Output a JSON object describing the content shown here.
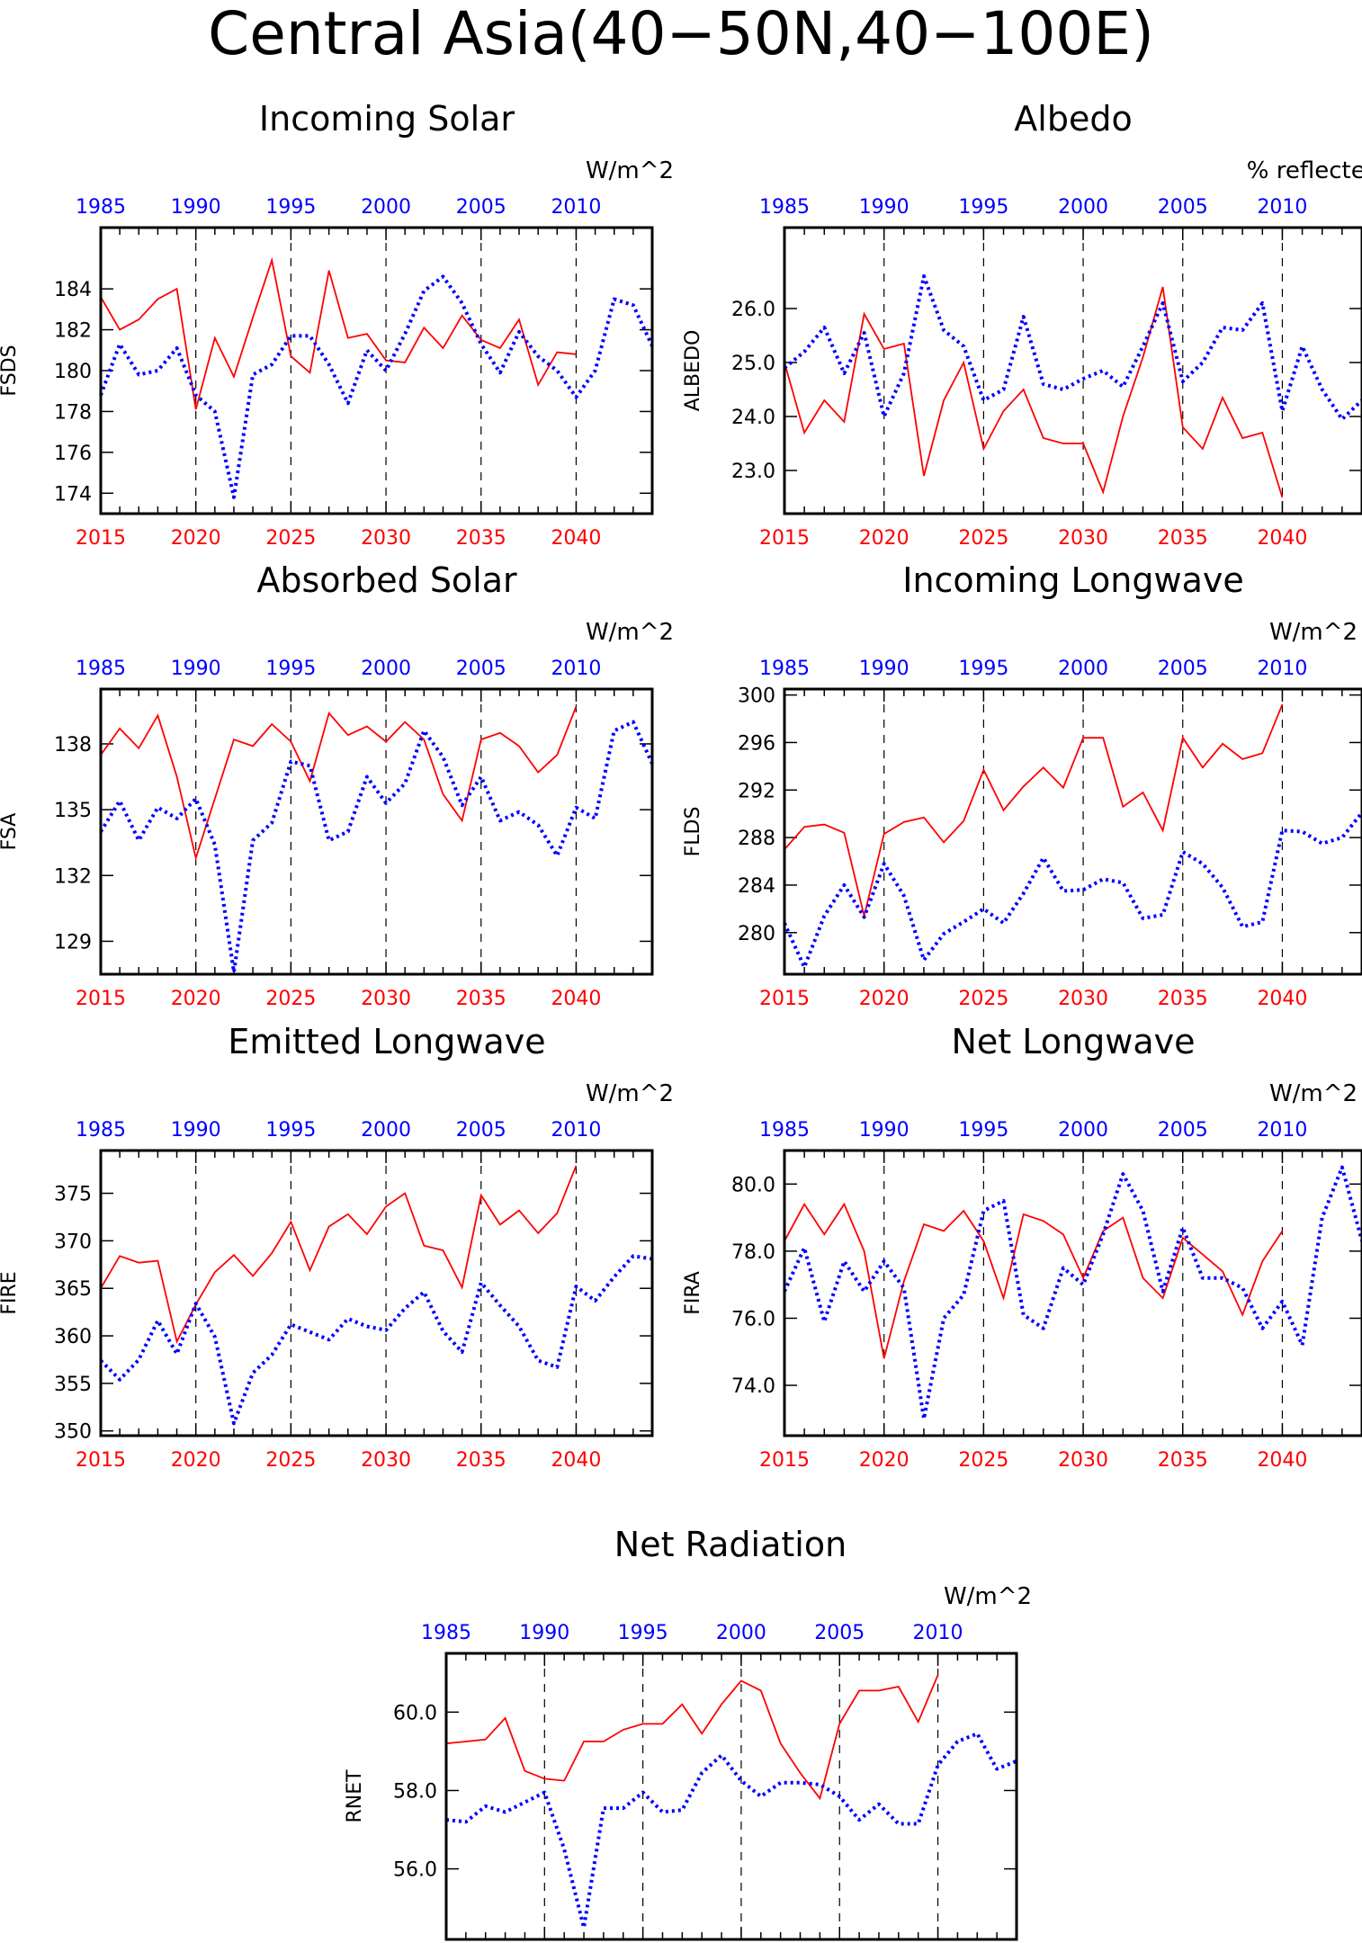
{
  "page": {
    "title": "Central Asia(40−50N,40−100E)"
  },
  "style": {
    "future_color": "#ff0000",
    "hist_color": "#0000ff",
    "grid_color": "#000000"
  },
  "chart_data": [
    {
      "id": "fsds",
      "type": "line",
      "title": "Incoming Solar",
      "units": "W/m^2",
      "ylabel": "FSDS",
      "ylim": [
        173,
        187
      ],
      "yticks": [
        174,
        176,
        178,
        180,
        182,
        184
      ],
      "ytick_labels": [
        "174",
        "176",
        "178",
        "180",
        "182",
        "184"
      ],
      "x_bottom": {
        "range": [
          2015,
          2044
        ],
        "ticks": [
          2015,
          2020,
          2025,
          2030,
          2035,
          2040
        ]
      },
      "x_top": {
        "range": [
          1985,
          2014
        ],
        "ticks": [
          1985,
          1990,
          1995,
          2000,
          2005,
          2010
        ]
      },
      "series": [
        {
          "x_start": 2015,
          "values": [
            183.6,
            182.0,
            182.5,
            183.5,
            184.0,
            178.1,
            181.6,
            179.7,
            182.6,
            185.4,
            180.7,
            179.9,
            184.9,
            181.6,
            181.8,
            180.5,
            180.4,
            182.1,
            181.1,
            182.7,
            181.5,
            181.1,
            182.5,
            179.3,
            180.9,
            180.8
          ]
        },
        {
          "x_start": 1985,
          "values": [
            178.8,
            181.3,
            179.8,
            180.0,
            181.1,
            178.8,
            178.0,
            173.8,
            179.8,
            180.3,
            181.7,
            181.7,
            180.3,
            178.4,
            181.0,
            180.0,
            181.8,
            183.9,
            184.6,
            183.3,
            181.3,
            179.9,
            181.9,
            180.7,
            180.0,
            178.7,
            180.0,
            183.5,
            183.2,
            181.2
          ]
        }
      ]
    },
    {
      "id": "albedo",
      "type": "line",
      "title": "Albedo",
      "units": "% reflected",
      "ylabel": "ALBEDO",
      "ylim": [
        22.2,
        27.5
      ],
      "yticks": [
        23,
        24,
        25,
        26
      ],
      "ytick_labels": [
        "23.0",
        "24.0",
        "25.0",
        "26.0"
      ],
      "x_bottom": {
        "range": [
          2015,
          2044
        ],
        "ticks": [
          2015,
          2020,
          2025,
          2030,
          2035,
          2040
        ]
      },
      "x_top": {
        "range": [
          1985,
          2014
        ],
        "ticks": [
          1985,
          1990,
          1995,
          2000,
          2005,
          2010
        ]
      },
      "series": [
        {
          "x_start": 2015,
          "values": [
            25.0,
            23.7,
            24.3,
            23.9,
            25.9,
            25.25,
            25.35,
            22.9,
            24.3,
            25.0,
            23.4,
            24.1,
            24.5,
            23.6,
            23.5,
            23.5,
            22.6,
            24.0,
            25.1,
            26.4,
            23.8,
            23.4,
            24.35,
            23.6,
            23.7,
            22.5
          ]
        },
        {
          "x_start": 1985,
          "values": [
            24.9,
            25.2,
            25.65,
            24.8,
            25.55,
            24.0,
            24.8,
            26.6,
            25.6,
            25.3,
            24.3,
            24.5,
            25.85,
            24.6,
            24.5,
            24.7,
            24.85,
            24.55,
            25.3,
            26.1,
            24.65,
            25.0,
            25.65,
            25.6,
            26.1,
            24.1,
            25.3,
            24.5,
            23.95,
            24.3
          ]
        }
      ]
    },
    {
      "id": "fsa",
      "type": "line",
      "title": "Absorbed Solar",
      "units": "W/m^2",
      "ylabel": "FSA",
      "ylim": [
        127.5,
        140.5
      ],
      "yticks": [
        129,
        132,
        135,
        138
      ],
      "ytick_labels": [
        "129",
        "132",
        "135",
        "138"
      ],
      "x_bottom": {
        "range": [
          2015,
          2044
        ],
        "ticks": [
          2015,
          2020,
          2025,
          2030,
          2035,
          2040
        ]
      },
      "x_top": {
        "range": [
          1985,
          2014
        ],
        "ticks": [
          1985,
          1990,
          1995,
          2000,
          2005,
          2010
        ]
      },
      "series": [
        {
          "x_start": 2015,
          "values": [
            137.5,
            138.7,
            137.8,
            139.3,
            136.5,
            132.8,
            135.5,
            138.2,
            137.9,
            138.9,
            138.1,
            136.3,
            139.4,
            138.4,
            138.8,
            138.1,
            139.0,
            138.2,
            135.7,
            134.5,
            138.2,
            138.5,
            137.9,
            136.7,
            137.5,
            139.7
          ]
        },
        {
          "x_start": 1985,
          "values": [
            134.0,
            135.4,
            133.6,
            135.1,
            134.6,
            135.5,
            133.4,
            127.6,
            133.6,
            134.4,
            137.2,
            137.0,
            133.6,
            134.0,
            136.5,
            135.3,
            136.2,
            138.6,
            137.4,
            135.2,
            136.5,
            134.5,
            134.9,
            134.3,
            132.9,
            135.1,
            134.6,
            138.6,
            139.0,
            137.1
          ]
        }
      ]
    },
    {
      "id": "flds",
      "type": "line",
      "title": "Incoming Longwave",
      "units": "W/m^2",
      "ylabel": "FLDS",
      "ylim": [
        276.5,
        300.5
      ],
      "yticks": [
        280,
        284,
        288,
        292,
        296,
        300
      ],
      "ytick_labels": [
        "280",
        "284",
        "288",
        "292",
        "296",
        "300"
      ],
      "x_bottom": {
        "range": [
          2015,
          2044
        ],
        "ticks": [
          2015,
          2020,
          2025,
          2030,
          2035,
          2040
        ]
      },
      "x_top": {
        "range": [
          1985,
          2014
        ],
        "ticks": [
          1985,
          1990,
          1995,
          2000,
          2005,
          2010
        ]
      },
      "series": [
        {
          "x_start": 2015,
          "values": [
            287.0,
            288.9,
            289.1,
            288.4,
            281.4,
            288.3,
            289.3,
            289.7,
            287.6,
            289.4,
            293.7,
            290.3,
            292.3,
            293.9,
            292.2,
            296.4,
            296.4,
            290.6,
            291.8,
            288.6,
            296.4,
            293.9,
            295.9,
            294.6,
            295.1,
            299.2
          ]
        },
        {
          "x_start": 1985,
          "values": [
            280.8,
            277.1,
            281.4,
            284.0,
            281.3,
            285.8,
            283.1,
            277.7,
            279.9,
            280.9,
            282.0,
            280.8,
            283.3,
            286.3,
            283.5,
            283.6,
            284.5,
            284.2,
            281.2,
            281.5,
            286.8,
            285.8,
            283.8,
            280.5,
            280.9,
            288.6,
            288.5,
            287.5,
            288.0,
            290.1
          ]
        }
      ]
    },
    {
      "id": "fire",
      "type": "line",
      "title": "Emitted Longwave",
      "units": "W/m^2",
      "ylabel": "FIRE",
      "ylim": [
        349.5,
        379.5
      ],
      "yticks": [
        350,
        355,
        360,
        365,
        370,
        375
      ],
      "ytick_labels": [
        "350",
        "355",
        "360",
        "365",
        "370",
        "375"
      ],
      "x_bottom": {
        "range": [
          2015,
          2044
        ],
        "ticks": [
          2015,
          2020,
          2025,
          2030,
          2035,
          2040
        ]
      },
      "x_top": {
        "range": [
          1985,
          2014
        ],
        "ticks": [
          1985,
          1990,
          1995,
          2000,
          2005,
          2010
        ]
      },
      "series": [
        {
          "x_start": 2015,
          "values": [
            365.0,
            368.4,
            367.7,
            367.9,
            359.4,
            363.3,
            366.7,
            368.5,
            366.3,
            368.7,
            372.0,
            366.9,
            371.5,
            372.8,
            370.7,
            373.6,
            375.0,
            369.5,
            369.0,
            365.1,
            374.8,
            371.7,
            373.2,
            370.8,
            372.9,
            377.9
          ]
        },
        {
          "x_start": 1985,
          "values": [
            357.4,
            355.4,
            357.5,
            361.6,
            358.1,
            363.4,
            359.9,
            350.8,
            356.1,
            358.0,
            361.2,
            360.4,
            359.6,
            361.8,
            361.0,
            360.6,
            362.9,
            364.6,
            360.5,
            358.3,
            365.6,
            363.2,
            361.0,
            357.4,
            356.7,
            365.2,
            363.7,
            366.2,
            368.4,
            368.1
          ]
        }
      ]
    },
    {
      "id": "fira",
      "type": "line",
      "title": "Net Longwave",
      "units": "W/m^2",
      "ylabel": "FIRA",
      "ylim": [
        72.5,
        81.0
      ],
      "yticks": [
        74,
        76,
        78,
        80
      ],
      "ytick_labels": [
        "74.0",
        "76.0",
        "78.0",
        "80.0"
      ],
      "x_bottom": {
        "range": [
          2015,
          2044
        ],
        "ticks": [
          2015,
          2020,
          2025,
          2030,
          2035,
          2040
        ]
      },
      "x_top": {
        "range": [
          1985,
          2014
        ],
        "ticks": [
          1985,
          1990,
          1995,
          2000,
          2005,
          2010
        ]
      },
      "series": [
        {
          "x_start": 2015,
          "values": [
            78.3,
            79.4,
            78.5,
            79.4,
            78.0,
            74.8,
            77.1,
            78.8,
            78.6,
            79.2,
            78.3,
            76.6,
            79.1,
            78.9,
            78.5,
            77.2,
            78.6,
            79.0,
            77.2,
            76.6,
            78.4,
            77.9,
            77.4,
            76.1,
            77.7,
            78.6
          ]
        },
        {
          "x_start": 1985,
          "values": [
            76.8,
            78.1,
            75.9,
            77.7,
            76.8,
            77.7,
            76.9,
            73.0,
            76.0,
            76.7,
            79.2,
            79.5,
            76.1,
            75.7,
            77.5,
            77.0,
            78.5,
            80.3,
            79.2,
            76.8,
            78.7,
            77.2,
            77.2,
            76.9,
            75.7,
            76.5,
            75.2,
            79.0,
            80.5,
            78.3
          ]
        }
      ]
    },
    {
      "id": "rnet",
      "type": "line",
      "title": "Net Radiation",
      "units": "W/m^2",
      "ylabel": "RNET",
      "ylim": [
        54.2,
        61.5
      ],
      "yticks": [
        56,
        58,
        60
      ],
      "ytick_labels": [
        "56.0",
        "58.0",
        "60.0"
      ],
      "x_bottom": {
        "range": [
          2015,
          2044
        ],
        "ticks": [
          2015,
          2020,
          2025,
          2030,
          2035,
          2040
        ]
      },
      "x_top": {
        "range": [
          1985,
          2014
        ],
        "ticks": [
          1985,
          1990,
          1995,
          2000,
          2005,
          2010
        ]
      },
      "series": [
        {
          "x_start": 2015,
          "values": [
            59.2,
            59.25,
            59.3,
            59.85,
            58.5,
            58.3,
            58.25,
            59.25,
            59.25,
            59.55,
            59.7,
            59.7,
            60.2,
            59.45,
            60.2,
            60.8,
            60.55,
            59.2,
            58.45,
            57.8,
            59.7,
            60.55,
            60.55,
            60.65,
            59.75,
            60.95
          ]
        },
        {
          "x_start": 1985,
          "values": [
            57.25,
            57.2,
            57.6,
            57.45,
            57.7,
            57.95,
            56.5,
            54.5,
            57.55,
            57.55,
            57.95,
            57.45,
            57.5,
            58.45,
            58.9,
            58.25,
            57.85,
            58.2,
            58.2,
            58.15,
            57.85,
            57.25,
            57.65,
            57.15,
            57.15,
            58.65,
            59.25,
            59.45,
            58.55,
            58.75
          ]
        }
      ]
    }
  ]
}
